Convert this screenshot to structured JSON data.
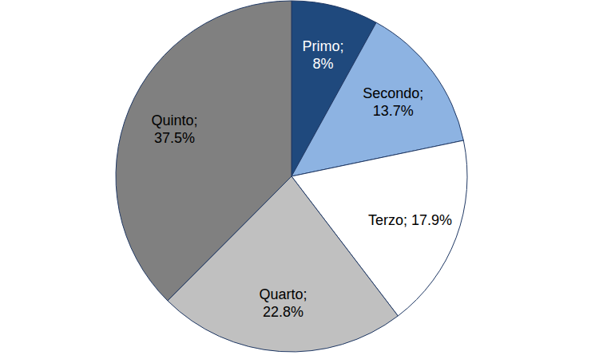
{
  "chart_data": {
    "type": "pie",
    "categories": [
      "Primo",
      "Secondo",
      "Terzo",
      "Quarto",
      "Quinto"
    ],
    "values": [
      8,
      13.7,
      17.9,
      22.8,
      37.5
    ],
    "value_labels": [
      "Primo; 8%",
      "Secondo; 13.7%",
      "Terzo; 17.9%",
      "Quarto; 22.8%",
      "Quinto; 37.5%"
    ],
    "colors": [
      "#1f497d",
      "#8db3e2",
      "#ffffff",
      "#c0c0c0",
      "#808080"
    ],
    "data_labels": true
  }
}
